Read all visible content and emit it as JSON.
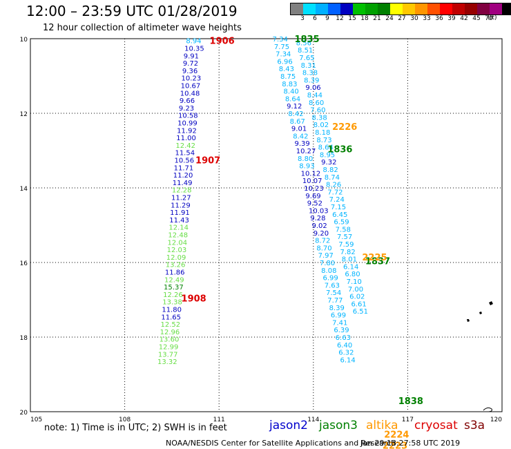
{
  "title": "12:00 – 23:59 UTC 01/28/2019",
  "subtitle": "12 hour collection of altimeter wave heights",
  "colorbar": {
    "colors": [
      "#808080",
      "#00e0ff",
      "#00b0ff",
      "#0060ff",
      "#0000c0",
      "#00c000",
      "#00a000",
      "#008000",
      "#ffff00",
      "#ffc800",
      "#ff9600",
      "#ff5000",
      "#ff0000",
      "#c00000",
      "#960000",
      "#800040",
      "#a00080",
      "#000000"
    ],
    "labels": [
      "3",
      "6",
      "9",
      "12",
      "15",
      "18",
      "21",
      "24",
      "27",
      "30",
      "33",
      "36",
      "39",
      "42",
      "45",
      "70"
    ],
    "unit": "(ft)"
  },
  "axes": {
    "lat_ticks": [
      "10",
      "12",
      "14",
      "16",
      "18",
      "20"
    ],
    "lon_ticks": [
      "105",
      "108",
      "111",
      "114",
      "117",
      "120"
    ]
  },
  "footer": {
    "note": "note: 1) Time is in UTC; 2) SWH is in feet",
    "satellites": [
      {
        "name": "jason2",
        "color": "#0000cc"
      },
      {
        "name": "jason3",
        "color": "#008000"
      },
      {
        "name": "altika",
        "color": "#ff9900"
      },
      {
        "name": "cryosat",
        "color": "#dd0000"
      },
      {
        "name": "s3a",
        "color": "#800000"
      }
    ],
    "credit": "NOAA/NESDIS Center for Satellite Applications and Research",
    "timestamp": "Jan 29 13:27:58 UTC 2019"
  },
  "track_labels": [
    {
      "text": "1906",
      "color": "#dd0000",
      "lon": 110.7,
      "lat": 10.05
    },
    {
      "text": "1907",
      "color": "#dd0000",
      "lon": 110.25,
      "lat": 13.25
    },
    {
      "text": "1908",
      "color": "#dd0000",
      "lon": 109.8,
      "lat": 16.95
    },
    {
      "text": "1835",
      "color": "#008000",
      "lon": 113.4,
      "lat": 10.0
    },
    {
      "text": "1836",
      "color": "#008000",
      "lon": 114.45,
      "lat": 12.95
    },
    {
      "text": "1837",
      "color": "#008000",
      "lon": 115.65,
      "lat": 15.95
    },
    {
      "text": "1838",
      "color": "#008000",
      "lon": 116.7,
      "lat": 19.7
    },
    {
      "text": "2226",
      "color": "#ff9900",
      "lon": 114.6,
      "lat": 12.35
    },
    {
      "text": "2225",
      "color": "#ff9900",
      "lon": 115.55,
      "lat": 15.85
    },
    {
      "text": "2224",
      "color": "#ff9900",
      "lon": 116.25,
      "lat": 20.6
    },
    {
      "text": "2223",
      "color": "#ff9900",
      "lon": 116.2,
      "lat": 20.9
    }
  ],
  "swh_points": [
    {
      "v": "8.94",
      "c": "#00b4ff",
      "lon": 109.95,
      "lat": 10.05
    },
    {
      "v": "10.35",
      "c": "#0000c0",
      "lon": 109.9,
      "lat": 10.25
    },
    {
      "v": "9.91",
      "c": "#0000c0",
      "lon": 109.87,
      "lat": 10.45
    },
    {
      "v": "9.72",
      "c": "#0000c0",
      "lon": 109.85,
      "lat": 10.65
    },
    {
      "v": "9.36",
      "c": "#0000c0",
      "lon": 109.83,
      "lat": 10.85
    },
    {
      "v": "10.23",
      "c": "#0000c0",
      "lon": 109.8,
      "lat": 11.05
    },
    {
      "v": "10.67",
      "c": "#0000c0",
      "lon": 109.78,
      "lat": 11.25
    },
    {
      "v": "10.48",
      "c": "#0000c0",
      "lon": 109.76,
      "lat": 11.45
    },
    {
      "v": "9.66",
      "c": "#0000c0",
      "lon": 109.74,
      "lat": 11.65
    },
    {
      "v": "9.23",
      "c": "#0000c0",
      "lon": 109.72,
      "lat": 11.85
    },
    {
      "v": "10.58",
      "c": "#0000c0",
      "lon": 109.7,
      "lat": 12.05
    },
    {
      "v": "10.99",
      "c": "#0000c0",
      "lon": 109.68,
      "lat": 12.25
    },
    {
      "v": "11.92",
      "c": "#0000c0",
      "lon": 109.66,
      "lat": 12.45
    },
    {
      "v": "11.00",
      "c": "#0000c0",
      "lon": 109.64,
      "lat": 12.65
    },
    {
      "v": "12.42",
      "c": "#66dd44",
      "lon": 109.62,
      "lat": 12.85
    },
    {
      "v": "11.54",
      "c": "#0000c0",
      "lon": 109.6,
      "lat": 13.05
    },
    {
      "v": "10.56",
      "c": "#0000c0",
      "lon": 109.58,
      "lat": 13.25
    },
    {
      "v": "11.71",
      "c": "#0000c0",
      "lon": 109.56,
      "lat": 13.45
    },
    {
      "v": "11.20",
      "c": "#0000c0",
      "lon": 109.54,
      "lat": 13.65
    },
    {
      "v": "11.49",
      "c": "#0000c0",
      "lon": 109.52,
      "lat": 13.85
    },
    {
      "v": "12.28",
      "c": "#66dd44",
      "lon": 109.5,
      "lat": 14.05
    },
    {
      "v": "11.27",
      "c": "#0000c0",
      "lon": 109.48,
      "lat": 14.25
    },
    {
      "v": "11.29",
      "c": "#0000c0",
      "lon": 109.46,
      "lat": 14.45
    },
    {
      "v": "11.91",
      "c": "#0000c0",
      "lon": 109.44,
      "lat": 14.65
    },
    {
      "v": "11.43",
      "c": "#0000c0",
      "lon": 109.42,
      "lat": 14.85
    },
    {
      "v": "12.14",
      "c": "#66dd44",
      "lon": 109.4,
      "lat": 15.05
    },
    {
      "v": "12.48",
      "c": "#66dd44",
      "lon": 109.38,
      "lat": 15.25
    },
    {
      "v": "12.04",
      "c": "#66dd44",
      "lon": 109.36,
      "lat": 15.45
    },
    {
      "v": "12.03",
      "c": "#66dd44",
      "lon": 109.34,
      "lat": 15.65
    },
    {
      "v": "12.09",
      "c": "#66dd44",
      "lon": 109.32,
      "lat": 15.85
    },
    {
      "v": "13.26",
      "c": "#66dd44",
      "lon": 109.3,
      "lat": 16.05
    },
    {
      "v": "11.86",
      "c": "#0000c0",
      "lon": 109.28,
      "lat": 16.25
    },
    {
      "v": "12.49",
      "c": "#66dd44",
      "lon": 109.26,
      "lat": 16.45
    },
    {
      "v": "15.37",
      "c": "#008000",
      "lon": 109.24,
      "lat": 16.65
    },
    {
      "v": "12.26",
      "c": "#66dd44",
      "lon": 109.22,
      "lat": 16.85
    },
    {
      "v": "13.38",
      "c": "#66dd44",
      "lon": 109.2,
      "lat": 17.05
    },
    {
      "v": "11.80",
      "c": "#0000c0",
      "lon": 109.18,
      "lat": 17.25
    },
    {
      "v": "11.65",
      "c": "#0000c0",
      "lon": 109.16,
      "lat": 17.45
    },
    {
      "v": "12.52",
      "c": "#66dd44",
      "lon": 109.14,
      "lat": 17.65
    },
    {
      "v": "12.96",
      "c": "#66dd44",
      "lon": 109.12,
      "lat": 17.85
    },
    {
      "v": "13.60",
      "c": "#66dd44",
      "lon": 109.1,
      "lat": 18.05
    },
    {
      "v": "12.99",
      "c": "#66dd44",
      "lon": 109.08,
      "lat": 18.25
    },
    {
      "v": "13.77",
      "c": "#66dd44",
      "lon": 109.06,
      "lat": 18.45
    },
    {
      "v": "13.32",
      "c": "#66dd44",
      "lon": 109.04,
      "lat": 18.65
    },
    {
      "v": "7.34",
      "c": "#00b4ff",
      "lon": 112.7,
      "lat": 10.0
    },
    {
      "v": "7.75",
      "c": "#00b4ff",
      "lon": 112.75,
      "lat": 10.2
    },
    {
      "v": "7.34",
      "c": "#00b4ff",
      "lon": 112.8,
      "lat": 10.4
    },
    {
      "v": "6.96",
      "c": "#00b4ff",
      "lon": 112.85,
      "lat": 10.6
    },
    {
      "v": "8.43",
      "c": "#00b4ff",
      "lon": 112.9,
      "lat": 10.8
    },
    {
      "v": "8.75",
      "c": "#00b4ff",
      "lon": 112.95,
      "lat": 11.0
    },
    {
      "v": "8.83",
      "c": "#00b4ff",
      "lon": 113.0,
      "lat": 11.2
    },
    {
      "v": "8.40",
      "c": "#00b4ff",
      "lon": 113.05,
      "lat": 11.4
    },
    {
      "v": "8.64",
      "c": "#00b4ff",
      "lon": 113.1,
      "lat": 11.6
    },
    {
      "v": "9.12",
      "c": "#0000c0",
      "lon": 113.15,
      "lat": 11.8
    },
    {
      "v": "8.42",
      "c": "#00b4ff",
      "lon": 113.2,
      "lat": 12.0
    },
    {
      "v": "8.67",
      "c": "#00b4ff",
      "lon": 113.25,
      "lat": 12.2
    },
    {
      "v": "9.01",
      "c": "#0000c0",
      "lon": 113.3,
      "lat": 12.4
    },
    {
      "v": "8.42",
      "c": "#00b4ff",
      "lon": 113.35,
      "lat": 12.6
    },
    {
      "v": "9.39",
      "c": "#0000c0",
      "lon": 113.4,
      "lat": 12.8
    },
    {
      "v": "10.27",
      "c": "#0000c0",
      "lon": 113.45,
      "lat": 13.0
    },
    {
      "v": "8.80",
      "c": "#00b4ff",
      "lon": 113.5,
      "lat": 13.2
    },
    {
      "v": "8.93",
      "c": "#00b4ff",
      "lon": 113.55,
      "lat": 13.4
    },
    {
      "v": "10.12",
      "c": "#0000c0",
      "lon": 113.6,
      "lat": 13.6
    },
    {
      "v": "10.07",
      "c": "#0000c0",
      "lon": 113.65,
      "lat": 13.8
    },
    {
      "v": "10.23",
      "c": "#0000c0",
      "lon": 113.7,
      "lat": 14.0
    },
    {
      "v": "9.69",
      "c": "#0000c0",
      "lon": 113.75,
      "lat": 14.2
    },
    {
      "v": "9.52",
      "c": "#0000c0",
      "lon": 113.8,
      "lat": 14.4
    },
    {
      "v": "10.03",
      "c": "#0000c0",
      "lon": 113.85,
      "lat": 14.6
    },
    {
      "v": "9.28",
      "c": "#0000c0",
      "lon": 113.9,
      "lat": 14.8
    },
    {
      "v": "9.02",
      "c": "#0000c0",
      "lon": 113.95,
      "lat": 15.0
    },
    {
      "v": "9.20",
      "c": "#0000c0",
      "lon": 114.0,
      "lat": 15.2
    },
    {
      "v": "8.72",
      "c": "#00b4ff",
      "lon": 114.05,
      "lat": 15.4
    },
    {
      "v": "8.70",
      "c": "#00b4ff",
      "lon": 114.1,
      "lat": 15.6
    },
    {
      "v": "7.97",
      "c": "#00b4ff",
      "lon": 114.15,
      "lat": 15.8
    },
    {
      "v": "7.80",
      "c": "#00b4ff",
      "lon": 114.2,
      "lat": 16.0
    },
    {
      "v": "8.08",
      "c": "#00b4ff",
      "lon": 114.25,
      "lat": 16.2
    },
    {
      "v": "6.99",
      "c": "#00b4ff",
      "lon": 114.3,
      "lat": 16.4
    },
    {
      "v": "7.63",
      "c": "#00b4ff",
      "lon": 114.35,
      "lat": 16.6
    },
    {
      "v": "7.54",
      "c": "#00b4ff",
      "lon": 114.4,
      "lat": 16.8
    },
    {
      "v": "7.77",
      "c": "#00b4ff",
      "lon": 114.45,
      "lat": 17.0
    },
    {
      "v": "8.39",
      "c": "#00b4ff",
      "lon": 114.5,
      "lat": 17.2
    },
    {
      "v": "6.99",
      "c": "#00b4ff",
      "lon": 114.55,
      "lat": 17.4
    },
    {
      "v": "7.41",
      "c": "#00b4ff",
      "lon": 114.6,
      "lat": 17.6
    },
    {
      "v": "6.39",
      "c": "#00b4ff",
      "lon": 114.65,
      "lat": 17.8
    },
    {
      "v": "6.63",
      "c": "#00b4ff",
      "lon": 114.7,
      "lat": 18.0
    },
    {
      "v": "6.40",
      "c": "#00b4ff",
      "lon": 114.75,
      "lat": 18.2
    },
    {
      "v": "6.32",
      "c": "#00b4ff",
      "lon": 114.8,
      "lat": 18.4
    },
    {
      "v": "6.14",
      "c": "#00b4ff",
      "lon": 114.85,
      "lat": 18.6
    },
    {
      "v": "8.56",
      "c": "#00b4ff",
      "lon": 113.45,
      "lat": 10.1
    },
    {
      "v": "8.51",
      "c": "#00b4ff",
      "lon": 113.5,
      "lat": 10.3
    },
    {
      "v": "7.65",
      "c": "#00b4ff",
      "lon": 113.55,
      "lat": 10.5
    },
    {
      "v": "8.31",
      "c": "#00b4ff",
      "lon": 113.6,
      "lat": 10.7
    },
    {
      "v": "8.38",
      "c": "#00b4ff",
      "lon": 113.65,
      "lat": 10.9
    },
    {
      "v": "8.39",
      "c": "#00b4ff",
      "lon": 113.7,
      "lat": 11.1
    },
    {
      "v": "9.06",
      "c": "#0000c0",
      "lon": 113.75,
      "lat": 11.3
    },
    {
      "v": "8.44",
      "c": "#00b4ff",
      "lon": 113.8,
      "lat": 11.5
    },
    {
      "v": "8.60",
      "c": "#00b4ff",
      "lon": 113.85,
      "lat": 11.7
    },
    {
      "v": "7.60",
      "c": "#00b4ff",
      "lon": 113.9,
      "lat": 11.9
    },
    {
      "v": "8.38",
      "c": "#00b4ff",
      "lon": 113.95,
      "lat": 12.1
    },
    {
      "v": "8.02",
      "c": "#00b4ff",
      "lon": 114.0,
      "lat": 12.3
    },
    {
      "v": "8.18",
      "c": "#00b4ff",
      "lon": 114.05,
      "lat": 12.5
    },
    {
      "v": "8.73",
      "c": "#00b4ff",
      "lon": 114.1,
      "lat": 12.7
    },
    {
      "v": "8.64",
      "c": "#00b4ff",
      "lon": 114.15,
      "lat": 12.9
    },
    {
      "v": "8.95",
      "c": "#00b4ff",
      "lon": 114.2,
      "lat": 13.1
    },
    {
      "v": "9.32",
      "c": "#0000c0",
      "lon": 114.25,
      "lat": 13.3
    },
    {
      "v": "8.82",
      "c": "#00b4ff",
      "lon": 114.3,
      "lat": 13.5
    },
    {
      "v": "8.74",
      "c": "#00b4ff",
      "lon": 114.35,
      "lat": 13.7
    },
    {
      "v": "8.26",
      "c": "#00b4ff",
      "lon": 114.4,
      "lat": 13.9
    },
    {
      "v": "7.72",
      "c": "#00b4ff",
      "lon": 114.45,
      "lat": 14.1
    },
    {
      "v": "7.24",
      "c": "#00b4ff",
      "lon": 114.5,
      "lat": 14.3
    },
    {
      "v": "7.15",
      "c": "#00b4ff",
      "lon": 114.55,
      "lat": 14.5
    },
    {
      "v": "6.45",
      "c": "#00b4ff",
      "lon": 114.6,
      "lat": 14.7
    },
    {
      "v": "6.59",
      "c": "#00b4ff",
      "lon": 114.65,
      "lat": 14.9
    },
    {
      "v": "7.58",
      "c": "#00b4ff",
      "lon": 114.7,
      "lat": 15.1
    },
    {
      "v": "7.57",
      "c": "#00b4ff",
      "lon": 114.75,
      "lat": 15.3
    },
    {
      "v": "7.59",
      "c": "#00b4ff",
      "lon": 114.8,
      "lat": 15.5
    },
    {
      "v": "7.82",
      "c": "#00b4ff",
      "lon": 114.85,
      "lat": 15.7
    },
    {
      "v": "8.01",
      "c": "#00b4ff",
      "lon": 114.9,
      "lat": 15.9
    },
    {
      "v": "6.14",
      "c": "#00b4ff",
      "lon": 114.95,
      "lat": 16.1
    },
    {
      "v": "6.80",
      "c": "#00b4ff",
      "lon": 115.0,
      "lat": 16.3
    },
    {
      "v": "7.10",
      "c": "#00b4ff",
      "lon": 115.05,
      "lat": 16.5
    },
    {
      "v": "7.00",
      "c": "#00b4ff",
      "lon": 115.1,
      "lat": 16.7
    },
    {
      "v": "6.02",
      "c": "#00b4ff",
      "lon": 115.15,
      "lat": 16.9
    },
    {
      "v": "6.61",
      "c": "#00b4ff",
      "lon": 115.2,
      "lat": 17.1
    },
    {
      "v": "6.51",
      "c": "#00b4ff",
      "lon": 115.25,
      "lat": 17.3
    }
  ]
}
